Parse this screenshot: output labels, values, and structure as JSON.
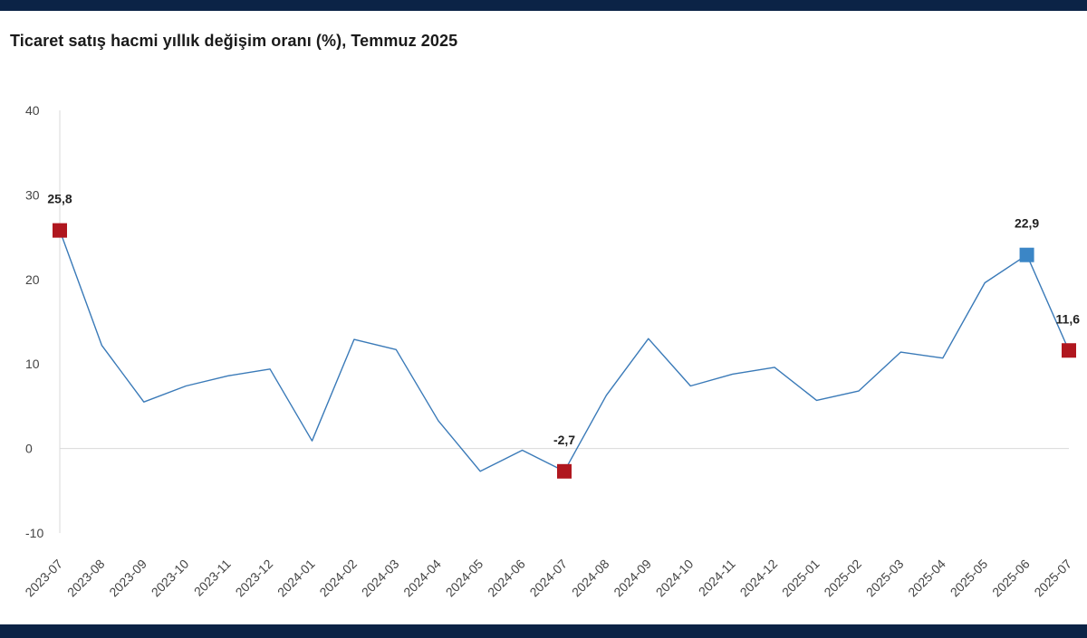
{
  "title": "Ticaret satış hacmi yıllık değişim oranı (%), Temmuz 2025",
  "colors": {
    "line": "#3a7ab8",
    "marker_red": "#b0171f",
    "marker_blue": "#3b86c6",
    "frame": "#0b2346"
  },
  "chart_data": {
    "type": "line",
    "title": "Ticaret satış hacmi yıllık değişim oranı (%), Temmuz 2025",
    "xlabel": "",
    "ylabel": "",
    "ylim": [
      -10,
      40
    ],
    "yticks": [
      -10,
      0,
      10,
      20,
      30,
      40
    ],
    "grid": false,
    "categories": [
      "2023-07",
      "2023-08",
      "2023-09",
      "2023-10",
      "2023-11",
      "2023-12",
      "2024-01",
      "2024-02",
      "2024-03",
      "2024-04",
      "2024-05",
      "2024-06",
      "2024-07",
      "2024-08",
      "2024-09",
      "2024-10",
      "2024-11",
      "2024-12",
      "2025-01",
      "2025-02",
      "2025-03",
      "2025-04",
      "2025-05",
      "2025-06",
      "2025-07"
    ],
    "series": [
      {
        "name": "Ticaret satış hacmi",
        "values": [
          25.8,
          12.2,
          5.5,
          7.4,
          8.6,
          9.4,
          0.9,
          12.9,
          11.7,
          3.3,
          -2.7,
          -0.2,
          -2.7,
          6.3,
          13.0,
          7.4,
          8.8,
          9.6,
          5.7,
          6.8,
          11.4,
          10.7,
          19.6,
          22.9,
          11.6
        ]
      }
    ],
    "highlights": [
      {
        "index": 0,
        "label": "25,8",
        "color": "red"
      },
      {
        "index": 12,
        "label": "-2,7",
        "color": "red"
      },
      {
        "index": 23,
        "label": "22,9",
        "color": "blue"
      },
      {
        "index": 24,
        "label": "11,6",
        "color": "red"
      }
    ]
  }
}
